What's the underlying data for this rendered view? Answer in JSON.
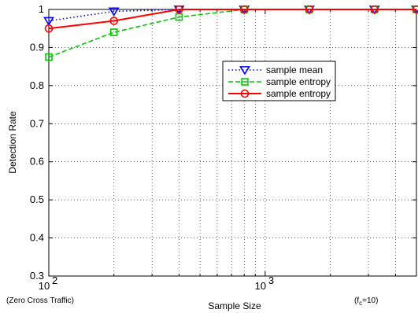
{
  "chart_data": {
    "type": "line",
    "xscale": "log",
    "xlabel": "Sample Size",
    "ylabel": "Detection Rate",
    "xlim": [
      100,
      5000
    ],
    "ylim": [
      0.3,
      1
    ],
    "grid": true,
    "legend_position": "center-right",
    "x_tick_labels": [
      {
        "base": "10",
        "exp": "2",
        "value": 100
      },
      {
        "base": "10",
        "exp": "3",
        "value": 1000
      }
    ],
    "y_ticks": [
      "0.3",
      "0.4",
      "0.5",
      "0.6",
      "0.7",
      "0.8",
      "0.9",
      "1"
    ],
    "series": [
      {
        "name": "sample mean",
        "color": "#0000ff",
        "line_style": "dotted",
        "marker": "triangle-down",
        "x": [
          100,
          200,
          400,
          800,
          1600,
          3200,
          5000
        ],
        "y": [
          0.97,
          0.995,
          1.0,
          1.0,
          1.0,
          1.0,
          1.0
        ]
      },
      {
        "name": "sample entropy",
        "color": "#00cc00",
        "line_style": "dashed",
        "marker": "square",
        "x": [
          100,
          200,
          400,
          800,
          1600,
          3200,
          5000
        ],
        "y": [
          0.875,
          0.94,
          0.98,
          1.0,
          1.0,
          1.0,
          1.0
        ]
      },
      {
        "name": "sample entropy",
        "color": "#ff0000",
        "line_style": "solid",
        "marker": "circle",
        "x": [
          100,
          200,
          400,
          800,
          1600,
          3200,
          5000
        ],
        "y": [
          0.95,
          0.97,
          1.0,
          1.0,
          1.0,
          1.0,
          1.0
        ]
      }
    ],
    "annotations": {
      "left_note": "(Zero Cross Traffic)",
      "right_note_prefix": "(f",
      "right_note_sub": "c",
      "right_note_suffix": "=10)"
    }
  }
}
